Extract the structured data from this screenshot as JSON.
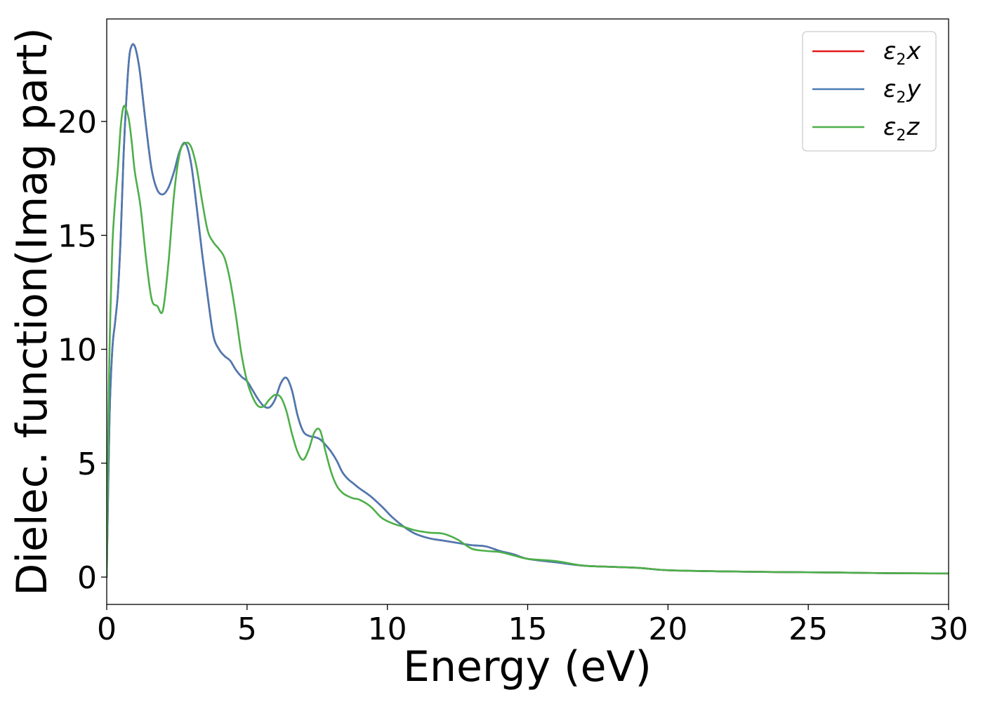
{
  "chart_data": {
    "type": "line",
    "xlabel": "Energy (eV)",
    "ylabel": "Dielec. function(Imag part)",
    "xlim": [
      0,
      30
    ],
    "ylim": [
      -1.2,
      24.5
    ],
    "xticks": [
      0,
      5,
      10,
      15,
      20,
      25,
      30
    ],
    "xtick_labels": [
      "0",
      "5",
      "10",
      "15",
      "20",
      "25",
      "30"
    ],
    "yticks": [
      0,
      5,
      10,
      15,
      20
    ],
    "ytick_labels": [
      "0",
      "5",
      "10",
      "15",
      "20"
    ],
    "grid": false,
    "legend_position": "top-right",
    "series": [
      {
        "name": "ε₂x",
        "legend": {
          "base": "ε",
          "sub": "2",
          "var": "x"
        },
        "color": "#e41a1c",
        "x": [
          0,
          0.1,
          0.2,
          0.3,
          0.4,
          0.5,
          0.6,
          0.7,
          0.8,
          0.9,
          1.0,
          1.1,
          1.2,
          1.4,
          1.6,
          1.8,
          2.0,
          2.2,
          2.4,
          2.6,
          2.8,
          3.0,
          3.2,
          3.4,
          3.6,
          3.8,
          4.0,
          4.2,
          4.4,
          4.6,
          4.8,
          5.0,
          5.2,
          5.4,
          5.6,
          5.8,
          6.0,
          6.2,
          6.4,
          6.6,
          6.8,
          7.0,
          7.2,
          7.4,
          7.6,
          7.8,
          8.0,
          8.2,
          8.4,
          8.6,
          8.8,
          9.0,
          9.4,
          9.8,
          10.2,
          10.6,
          11.0,
          11.5,
          12.0,
          12.5,
          13.0,
          13.5,
          14.0,
          14.5,
          15.0,
          16.0,
          17.0,
          18.0,
          19.0,
          20.0,
          22.0,
          24.0,
          26.0,
          28.0,
          30.0
        ],
        "values": [
          0.0,
          7.0,
          10.0,
          11.2,
          12.5,
          15.0,
          18.5,
          21.0,
          22.8,
          23.35,
          23.3,
          22.8,
          22.0,
          19.8,
          17.9,
          17.0,
          16.8,
          17.1,
          17.8,
          18.7,
          19.05,
          18.2,
          16.3,
          14.2,
          12.3,
          10.6,
          10.0,
          9.7,
          9.5,
          9.1,
          8.8,
          8.6,
          8.2,
          7.8,
          7.5,
          7.45,
          7.8,
          8.5,
          8.75,
          8.2,
          7.1,
          6.4,
          6.2,
          6.15,
          6.05,
          5.8,
          5.5,
          5.1,
          4.6,
          4.3,
          4.1,
          3.9,
          3.55,
          3.1,
          2.6,
          2.2,
          1.9,
          1.7,
          1.6,
          1.5,
          1.4,
          1.35,
          1.15,
          1.0,
          0.8,
          0.65,
          0.5,
          0.45,
          0.4,
          0.3,
          0.25,
          0.22,
          0.2,
          0.17,
          0.16
        ]
      },
      {
        "name": "ε₂y",
        "legend": {
          "base": "ε",
          "sub": "2",
          "var": "y"
        },
        "color": "#4a7ab4",
        "x": [
          0,
          0.1,
          0.2,
          0.3,
          0.4,
          0.5,
          0.6,
          0.7,
          0.8,
          0.9,
          1.0,
          1.1,
          1.2,
          1.4,
          1.6,
          1.8,
          2.0,
          2.2,
          2.4,
          2.6,
          2.8,
          3.0,
          3.2,
          3.4,
          3.6,
          3.8,
          4.0,
          4.2,
          4.4,
          4.6,
          4.8,
          5.0,
          5.2,
          5.4,
          5.6,
          5.8,
          6.0,
          6.2,
          6.4,
          6.6,
          6.8,
          7.0,
          7.2,
          7.4,
          7.6,
          7.8,
          8.0,
          8.2,
          8.4,
          8.6,
          8.8,
          9.0,
          9.4,
          9.8,
          10.2,
          10.6,
          11.0,
          11.5,
          12.0,
          12.5,
          13.0,
          13.5,
          14.0,
          14.5,
          15.0,
          16.0,
          17.0,
          18.0,
          19.0,
          20.0,
          22.0,
          24.0,
          26.0,
          28.0,
          30.0
        ],
        "values": [
          0.0,
          7.0,
          10.0,
          11.2,
          12.5,
          15.0,
          18.5,
          21.0,
          22.8,
          23.35,
          23.3,
          22.8,
          22.0,
          19.8,
          17.9,
          17.0,
          16.8,
          17.1,
          17.8,
          18.7,
          19.05,
          18.2,
          16.3,
          14.2,
          12.3,
          10.6,
          10.0,
          9.7,
          9.5,
          9.1,
          8.8,
          8.6,
          8.2,
          7.8,
          7.5,
          7.45,
          7.8,
          8.5,
          8.75,
          8.2,
          7.1,
          6.4,
          6.2,
          6.15,
          6.05,
          5.8,
          5.5,
          5.1,
          4.6,
          4.3,
          4.1,
          3.9,
          3.55,
          3.1,
          2.6,
          2.2,
          1.9,
          1.7,
          1.6,
          1.5,
          1.4,
          1.35,
          1.15,
          1.0,
          0.8,
          0.65,
          0.5,
          0.45,
          0.4,
          0.3,
          0.25,
          0.22,
          0.2,
          0.17,
          0.16
        ]
      },
      {
        "name": "ε₂z",
        "legend": {
          "base": "ε",
          "sub": "2",
          "var": "z"
        },
        "color": "#4daf4a",
        "x": [
          0,
          0.05,
          0.1,
          0.2,
          0.3,
          0.4,
          0.5,
          0.6,
          0.7,
          0.8,
          0.9,
          1.0,
          1.2,
          1.4,
          1.6,
          1.8,
          2.0,
          2.2,
          2.4,
          2.6,
          2.8,
          3.0,
          3.2,
          3.4,
          3.6,
          3.8,
          4.0,
          4.2,
          4.4,
          4.6,
          4.8,
          5.0,
          5.2,
          5.4,
          5.6,
          5.8,
          6.0,
          6.2,
          6.4,
          6.6,
          6.8,
          7.0,
          7.2,
          7.4,
          7.6,
          7.8,
          8.0,
          8.2,
          8.4,
          8.6,
          8.8,
          9.0,
          9.4,
          9.8,
          10.2,
          10.6,
          11.0,
          11.5,
          12.0,
          12.5,
          13.0,
          13.5,
          14.0,
          14.5,
          15.0,
          16.0,
          17.0,
          18.0,
          19.0,
          20.0,
          22.0,
          24.0,
          26.0,
          28.0,
          30.0
        ],
        "values": [
          0.0,
          6.0,
          10.0,
          14.5,
          16.5,
          18.0,
          19.8,
          20.65,
          20.5,
          20.0,
          19.0,
          17.8,
          16.3,
          14.0,
          12.2,
          11.9,
          11.7,
          13.8,
          16.8,
          18.6,
          19.05,
          18.9,
          18.0,
          16.5,
          15.2,
          14.7,
          14.4,
          14.0,
          13.0,
          11.5,
          9.8,
          8.6,
          7.9,
          7.5,
          7.5,
          7.8,
          8.0,
          7.9,
          7.3,
          6.3,
          5.5,
          5.15,
          5.6,
          6.35,
          6.45,
          5.5,
          4.6,
          4.0,
          3.7,
          3.55,
          3.45,
          3.4,
          3.1,
          2.6,
          2.35,
          2.2,
          2.05,
          1.95,
          1.9,
          1.65,
          1.25,
          1.15,
          1.1,
          0.95,
          0.8,
          0.7,
          0.5,
          0.45,
          0.4,
          0.3,
          0.25,
          0.22,
          0.2,
          0.17,
          0.16
        ]
      }
    ]
  }
}
